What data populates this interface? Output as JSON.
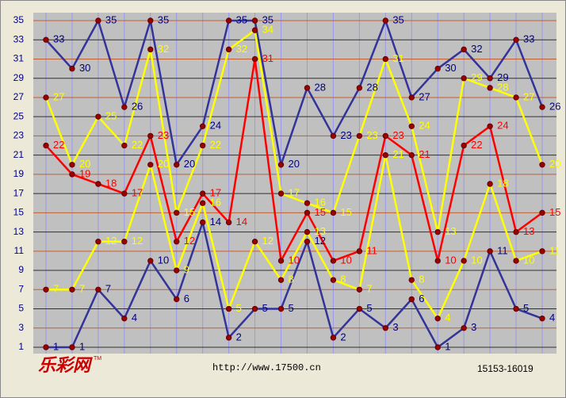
{
  "chart_data": {
    "type": "line",
    "ylim": [
      1,
      35
    ],
    "yticks": [
      1,
      3,
      5,
      7,
      9,
      11,
      13,
      15,
      17,
      19,
      21,
      23,
      25,
      27,
      29,
      31,
      33,
      35
    ],
    "grid": true,
    "series": [
      {
        "color": "#333399",
        "label_color": "#000080",
        "values": [
          33,
          30,
          35,
          26,
          35,
          20,
          24,
          35,
          35,
          20,
          28,
          23,
          28,
          35,
          27,
          30,
          32,
          29,
          33,
          26
        ]
      },
      {
        "color": "#ffff00",
        "label_color": "#ffff00",
        "values": [
          27,
          20,
          25,
          22,
          32,
          15,
          22,
          32,
          34,
          17,
          16,
          15,
          23,
          31,
          24,
          13,
          29,
          28,
          27,
          20
        ]
      },
      {
        "color": "#ff0000",
        "label_color": "#ff0000",
        "values": [
          22,
          19,
          18,
          17,
          23,
          12,
          17,
          14,
          31,
          10,
          15,
          10,
          11,
          23,
          21,
          10,
          22,
          24,
          13,
          15
        ]
      },
      {
        "color": "#ffff00",
        "label_color": "#ffff00",
        "values": [
          7,
          7,
          12,
          12,
          20,
          9,
          16,
          5,
          12,
          8,
          13,
          8,
          7,
          21,
          8,
          4,
          10,
          18,
          10,
          11
        ]
      },
      {
        "color": "#333399",
        "label_color": "#000080",
        "values": [
          1,
          1,
          7,
          4,
          10,
          6,
          14,
          2,
          5,
          5,
          12,
          2,
          5,
          3,
          6,
          1,
          3,
          11,
          5,
          4
        ]
      }
    ]
  },
  "footer": {
    "logo": "乐彩网",
    "trademark": "TM",
    "url": "http://www.17500.cn",
    "range": "15153-16019"
  }
}
